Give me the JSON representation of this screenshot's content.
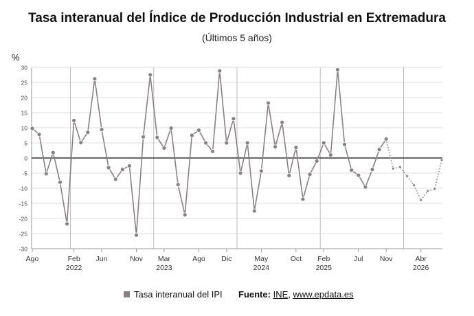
{
  "title": "Tasa interanual del Índice de Producción Industrial en Extremadura",
  "subtitle": "(Últimos 5 años)",
  "unit_label": "%",
  "legend": {
    "label": "Tasa interanual del IPI",
    "color": "#8a7f85"
  },
  "source": {
    "label": "Fuente:",
    "primary": "INE",
    "separator": ",",
    "secondary": "www.epdata.es"
  },
  "colors": {
    "line": "#8a7f85",
    "marker_fill": "#8a7f85",
    "marker_stroke": "#ffffff",
    "zero_line": "#333333",
    "grid": "#dddddd",
    "year_divider": "#bbbbbb"
  },
  "chart_data": {
    "type": "line",
    "ylim": [
      -30,
      30
    ],
    "y_ticks": [
      30,
      25,
      20,
      15,
      10,
      5,
      0,
      -5,
      -10,
      -15,
      -20,
      -25,
      -30
    ],
    "x_ticks": [
      {
        "month": "Ago",
        "year": "",
        "index": 0
      },
      {
        "month": "Feb",
        "year": "2022",
        "index": 6
      },
      {
        "month": "Jun",
        "year": "",
        "index": 10
      },
      {
        "month": "Nov",
        "year": "",
        "index": 15
      },
      {
        "month": "Mar",
        "year": "2023",
        "index": 19
      },
      {
        "month": "Ago",
        "year": "",
        "index": 24
      },
      {
        "month": "Dic",
        "year": "",
        "index": 28
      },
      {
        "month": "May",
        "year": "2024",
        "index": 33
      },
      {
        "month": "Oct",
        "year": "",
        "index": 38
      },
      {
        "month": "Feb",
        "year": "2025",
        "index": 42
      },
      {
        "month": "Jul",
        "year": "",
        "index": 47
      },
      {
        "month": "Nov",
        "year": "",
        "index": 51
      },
      {
        "month": "Abr",
        "year": "2026",
        "index": 56
      }
    ],
    "year_dividers": [
      5,
      17,
      29,
      41,
      53
    ],
    "series": [
      {
        "name": "Tasa interanual del IPI",
        "solid_points": 52,
        "values": [
          9.8,
          7.8,
          -5.2,
          1.8,
          -8.0,
          -21.8,
          12.4,
          5.1,
          8.5,
          26.2,
          9.4,
          -3.2,
          -7.0,
          -3.8,
          -2.6,
          -25.5,
          7.0,
          27.5,
          6.8,
          3.3,
          9.9,
          -8.8,
          -18.8,
          7.5,
          9.2,
          5.0,
          2.2,
          28.8,
          5.0,
          13.0,
          -5.0,
          5.0,
          -17.5,
          -4.3,
          18.2,
          3.7,
          11.8,
          -5.8,
          3.5,
          -13.6,
          -5.4,
          -1.0,
          5.0,
          1.0,
          29.2,
          4.5,
          -4.0,
          -5.7,
          -9.6,
          -3.8,
          2.8,
          6.3,
          -3.5,
          -3.0,
          -6.0,
          -9.0,
          -13.9,
          -10.9,
          -10.2,
          -0.7
        ]
      }
    ]
  }
}
